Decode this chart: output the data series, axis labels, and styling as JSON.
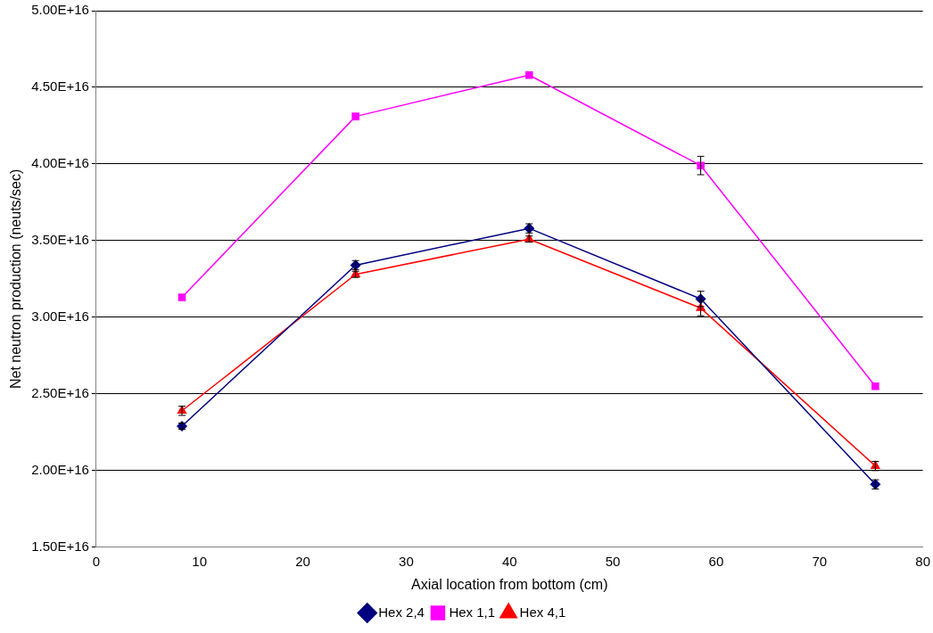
{
  "chart_data": {
    "type": "line",
    "xlabel": "Axial location from bottom (cm)",
    "ylabel": "Net neutron production (neuts/sec)",
    "xlim": [
      0,
      80
    ],
    "xticks": [
      0,
      10,
      20,
      30,
      40,
      50,
      60,
      70,
      80
    ],
    "ylim": [
      1.5e+16,
      5e+16
    ],
    "yticks": [
      {
        "value": 1.5e+16,
        "label": "1.50E+16"
      },
      {
        "value": 2e+16,
        "label": "2.00E+16"
      },
      {
        "value": 2.5e+16,
        "label": "2.50E+16"
      },
      {
        "value": 3e+16,
        "label": "3.00E+16"
      },
      {
        "value": 3.5e+16,
        "label": "3.50E+16"
      },
      {
        "value": 4e+16,
        "label": "4.00E+16"
      },
      {
        "value": 4.5e+16,
        "label": "4.50E+16"
      },
      {
        "value": 5e+16,
        "label": "5.00E+16"
      }
    ],
    "grid": "y",
    "legend": "bottom",
    "line_style": "solid",
    "x": [
      8.3,
      25.1,
      41.9,
      58.5,
      75.4
    ],
    "series": [
      {
        "name": "Hex 2,4",
        "color": "#000080",
        "marker": "diamond",
        "values": [
          2.29e+16,
          3.34e+16,
          3.58e+16,
          3.12e+16,
          1.91e+16
        ],
        "errors": [
          200000000000000.0,
          300000000000000.0,
          300000000000000.0,
          500000000000000.0,
          300000000000000.0
        ]
      },
      {
        "name": "Hex 1,1",
        "color": "#ff00ff",
        "marker": "square",
        "values": [
          3.13e+16,
          4.31e+16,
          4.58e+16,
          3.99e+16,
          2.55e+16
        ],
        "errors": [
          null,
          null,
          null,
          600000000000000.0,
          null
        ]
      },
      {
        "name": "Hex 4,1",
        "color": "#ff0000",
        "marker": "triangle",
        "values": [
          2.39e+16,
          3.28e+16,
          3.51e+16,
          3.06e+16,
          2.03e+16
        ],
        "errors": [
          300000000000000.0,
          200000000000000.0,
          200000000000000.0,
          500000000000000.0,
          300000000000000.0
        ]
      }
    ]
  }
}
